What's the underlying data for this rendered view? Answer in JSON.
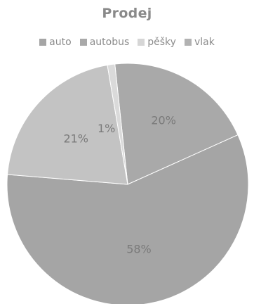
{
  "chart_data": {
    "type": "pie",
    "title": "Prodej",
    "legend_position": "top",
    "categories": [
      "auto",
      "autobus",
      "pěšky",
      "vlak"
    ],
    "values": [
      58,
      21,
      1,
      20
    ],
    "labels": [
      "58%",
      "21%",
      "1%",
      "20%"
    ],
    "colors": [
      "#a5a5a5",
      "#c3c3c3",
      "#dadada",
      "#a9a9a9"
    ],
    "legend_colors": [
      "#a5a5a5",
      "#a9a9a9",
      "#d6d6d6",
      "#b2b2b2"
    ]
  }
}
